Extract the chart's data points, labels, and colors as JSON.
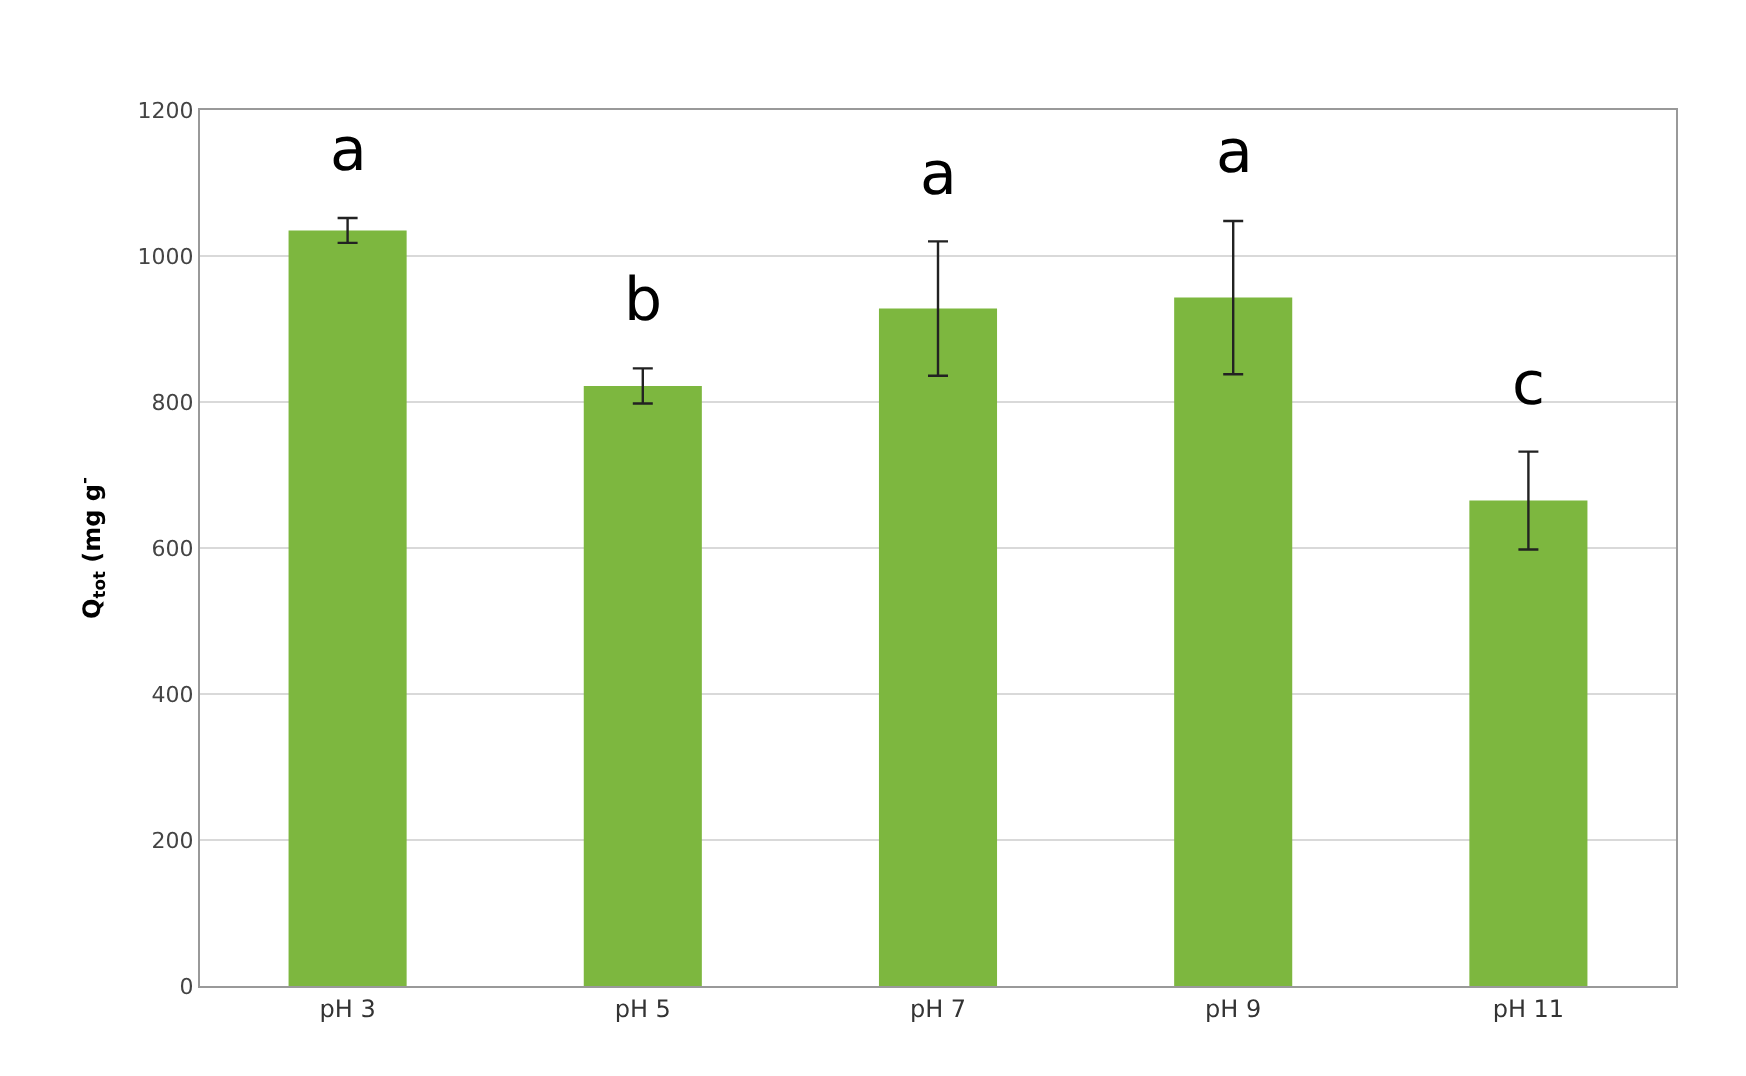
{
  "chart_data": {
    "type": "bar",
    "ylabel": "Q$_{tot}$ (mg g$^{-}$",
    "categories": [
      "pH 3",
      "pH 5",
      "pH 7",
      "pH 9",
      "pH 11"
    ],
    "values": [
      1035,
      822,
      928,
      943,
      665
    ],
    "errors": [
      17,
      24,
      92,
      105,
      67
    ],
    "color": "#7db73f",
    "ylim": [
      0,
      1200
    ],
    "yticks": [
      0,
      200,
      400,
      600,
      800,
      1000,
      1200
    ],
    "grid": "y",
    "annotations": [
      "a",
      "b",
      "a",
      "a",
      "c"
    ]
  }
}
